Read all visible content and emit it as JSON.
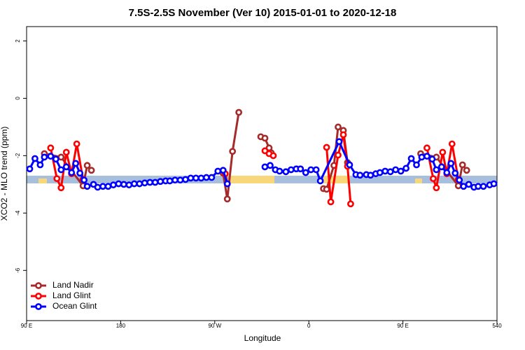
{
  "chart_data": {
    "type": "line",
    "title": "7.5S-2.5S November (Ver 10)   2015-01-01 to 2020-12-18",
    "x_label": "Longitude",
    "y_label": "XCO2 - MLO trend (ppm)",
    "xlim": [
      90,
      540
    ],
    "ylim": [
      -7.75,
      2.5
    ],
    "xticks": [
      {
        "value": 90,
        "label": "90 E"
      },
      180,
      {
        "value": 270,
        "label": "90 W"
      },
      {
        "value": 360,
        "label": "0"
      },
      {
        "value": 450,
        "label": "90 E"
      },
      540
    ],
    "yticks": [
      -6,
      -4,
      -2,
      0,
      2
    ],
    "legend": "lower left",
    "series": [
      {
        "name": "Land Nadir",
        "color": "#a52a2a",
        "x": [
          107,
          123,
          144,
          148,
          152,
          200,
          278,
          282,
          287,
          293,
          310,
          314,
          318,
          322,
          324,
          340,
          374,
          377,
          384,
          388,
          393,
          397,
          450,
          467,
          482,
          503,
          507,
          511
        ],
        "values": [
          -1.93,
          -2.05,
          -3.05,
          -2.34,
          -2.51,
          null,
          -2.61,
          -3.51,
          -1.85,
          -0.49,
          null,
          -1.34,
          -1.39,
          -1.73,
          -1.9,
          null,
          -3.15,
          -3.17,
          -2.34,
          -1.0,
          -1.12,
          -2.24,
          null,
          -1.93,
          -2.05,
          -3.05,
          -2.32,
          -2.51
        ]
      },
      {
        "name": "Land Glint",
        "color": "#ff0000",
        "x": [
          113,
          119,
          123,
          128,
          133,
          138,
          144,
          200,
          280,
          282,
          300,
          318,
          322,
          326,
          340,
          377,
          381,
          388,
          393,
          397,
          400,
          450,
          473,
          479,
          482,
          488,
          492,
          497,
          503
        ],
        "values": [
          -1.73,
          -2.8,
          -3.12,
          -1.88,
          -2.63,
          -1.59,
          -2.83,
          null,
          -2.63,
          -2.98,
          null,
          -1.83,
          -1.93,
          -2.0,
          null,
          -1.71,
          -3.61,
          -1.98,
          -1.27,
          -2.37,
          -3.68,
          null,
          -1.73,
          -2.8,
          -3.12,
          -1.88,
          -2.63,
          -1.59,
          -2.83
        ]
      },
      {
        "name": "Ocean Glint",
        "color": "#0000ff",
        "x": [
          93,
          98,
          103,
          107,
          113,
          118,
          123,
          128,
          133,
          137,
          141,
          145,
          148,
          154,
          158,
          163,
          168,
          173,
          178,
          183,
          188,
          193,
          198,
          203,
          208,
          213,
          218,
          223,
          227,
          232,
          237,
          242,
          247,
          252,
          257,
          262,
          267,
          273,
          278,
          282,
          300,
          318,
          323,
          328,
          332,
          338,
          343,
          348,
          352,
          357,
          362,
          367,
          371,
          389,
          399,
          405,
          409,
          415,
          419,
          424,
          428,
          433,
          438,
          443,
          448,
          453,
          458,
          463,
          468,
          473,
          478,
          482,
          487,
          492,
          496,
          500,
          504,
          508,
          513,
          518,
          522,
          527,
          533,
          537
        ],
        "values": [
          -2.46,
          -2.1,
          -2.32,
          -2.05,
          -2.02,
          -2.12,
          -2.49,
          -2.39,
          -2.59,
          -2.27,
          -2.61,
          -2.85,
          -3.07,
          -3.0,
          -3.1,
          -3.07,
          -3.07,
          -3.02,
          -2.98,
          -3.0,
          -3.02,
          -2.98,
          -2.98,
          -2.95,
          -2.93,
          -2.93,
          -2.9,
          -2.88,
          -2.88,
          -2.85,
          -2.85,
          -2.83,
          -2.78,
          -2.78,
          -2.78,
          -2.76,
          -2.76,
          -2.54,
          -2.51,
          -2.98,
          null,
          -2.39,
          -2.34,
          -2.49,
          -2.54,
          -2.56,
          -2.49,
          -2.46,
          -2.46,
          -2.59,
          -2.49,
          -2.49,
          -2.88,
          -1.51,
          -2.32,
          -2.66,
          -2.68,
          -2.66,
          -2.68,
          -2.63,
          -2.59,
          -2.54,
          -2.56,
          -2.49,
          -2.54,
          -2.44,
          -2.1,
          -2.32,
          -2.05,
          -2.02,
          -2.12,
          -2.49,
          -2.39,
          -2.59,
          -2.27,
          -2.61,
          -2.85,
          -3.07,
          -3.0,
          -3.1,
          -3.07,
          -3.07,
          -3.02,
          -2.98
        ]
      }
    ]
  }
}
